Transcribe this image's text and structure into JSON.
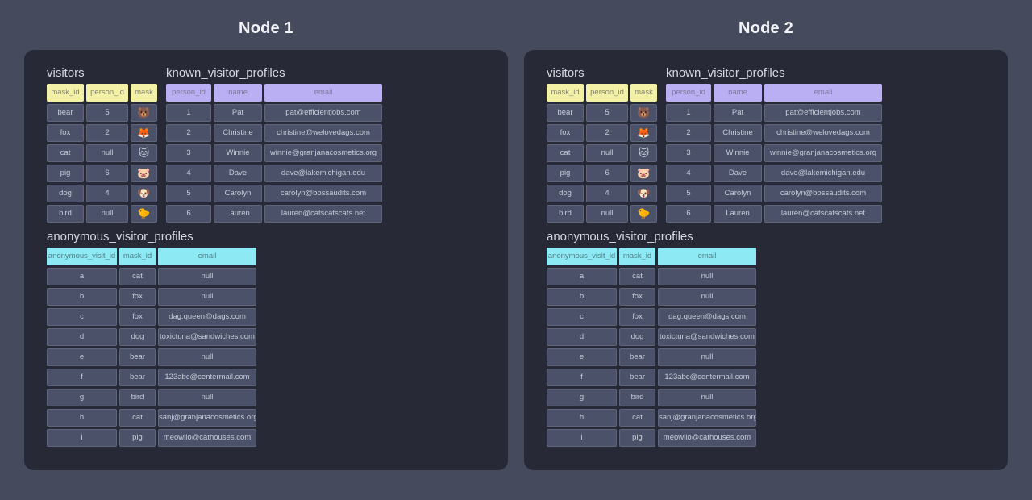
{
  "page": {
    "background": "#454a5c",
    "panel_background": "#272a36"
  },
  "colors": {
    "cell_bg": "#4a5168",
    "cell_border": "#5f667c",
    "cell_text": "#c7ccd8",
    "yellow_header_bg": "#f3f1a5",
    "yellow_header_text": "#85836f",
    "purple_header_bg": "#b9aff2",
    "purple_header_text": "#7e7a9e",
    "cyan_header_bg": "#8de9f3",
    "cyan_header_text": "#4e7e86"
  },
  "nodes": [
    {
      "title": "Node 1",
      "tables": [
        {
          "name": "visitors",
          "theme": "yellow",
          "columns": [
            "mask_id",
            "person_id",
            "mask"
          ],
          "mask_icons": [
            "bear-face-emoji",
            "fox-face-emoji",
            "cat-face-emoji",
            "pig-face-emoji",
            "dog-face-emoji",
            "baby-chick-emoji"
          ],
          "rows": [
            [
              "bear",
              "5",
              "🐻"
            ],
            [
              "fox",
              "2",
              "🦊"
            ],
            [
              "cat",
              "null",
              "🐱"
            ],
            [
              "pig",
              "6",
              "🐷"
            ],
            [
              "dog",
              "4",
              "🐶"
            ],
            [
              "bird",
              "null",
              "🐤"
            ]
          ]
        },
        {
          "name": "known_visitor_profiles",
          "theme": "purple",
          "columns": [
            "person_id",
            "name",
            "email"
          ],
          "rows": [
            [
              "1",
              "Pat",
              "pat@efficientjobs.com"
            ],
            [
              "2",
              "Christine",
              "christine@welovedags.com"
            ],
            [
              "3",
              "Winnie",
              "winnie@granjanacosmetics.org"
            ],
            [
              "4",
              "Dave",
              "dave@lakemichigan.edu"
            ],
            [
              "5",
              "Carolyn",
              "carolyn@bossaudits.com"
            ],
            [
              "6",
              "Lauren",
              "lauren@catscatscats.net"
            ]
          ]
        },
        {
          "name": "anonymous_visitor_profiles",
          "theme": "cyan",
          "columns": [
            "anonymous_visit_id",
            "mask_id",
            "email"
          ],
          "rows": [
            [
              "a",
              "cat",
              "null"
            ],
            [
              "b",
              "fox",
              "null"
            ],
            [
              "c",
              "fox",
              "dag.queen@dags.com"
            ],
            [
              "d",
              "dog",
              "toxictuna@sandwiches.com"
            ],
            [
              "e",
              "bear",
              "null"
            ],
            [
              "f",
              "bear",
              "123abc@centermail.com"
            ],
            [
              "g",
              "bird",
              "null"
            ],
            [
              "h",
              "cat",
              "sanj@granjanacosmetics.org"
            ],
            [
              "i",
              "pig",
              "meowllo@cathouses.com"
            ]
          ]
        }
      ]
    },
    {
      "title": "Node 2",
      "tables": [
        {
          "name": "visitors",
          "theme": "yellow",
          "columns": [
            "mask_id",
            "person_id",
            "mask"
          ],
          "mask_icons": [
            "bear-face-emoji",
            "fox-face-emoji",
            "cat-face-emoji",
            "pig-face-emoji",
            "dog-face-emoji",
            "baby-chick-emoji"
          ],
          "rows": [
            [
              "bear",
              "5",
              "🐻"
            ],
            [
              "fox",
              "2",
              "🦊"
            ],
            [
              "cat",
              "null",
              "🐱"
            ],
            [
              "pig",
              "6",
              "🐷"
            ],
            [
              "dog",
              "4",
              "🐶"
            ],
            [
              "bird",
              "null",
              "🐤"
            ]
          ]
        },
        {
          "name": "known_visitor_profiles",
          "theme": "purple",
          "columns": [
            "person_id",
            "name",
            "email"
          ],
          "rows": [
            [
              "1",
              "Pat",
              "pat@efficientjobs.com"
            ],
            [
              "2",
              "Christine",
              "christine@welovedags.com"
            ],
            [
              "3",
              "Winnie",
              "winnie@granjanacosmetics.org"
            ],
            [
              "4",
              "Dave",
              "dave@lakemichigan.edu"
            ],
            [
              "5",
              "Carolyn",
              "carolyn@bossaudits.com"
            ],
            [
              "6",
              "Lauren",
              "lauren@catscatscats.net"
            ]
          ]
        },
        {
          "name": "anonymous_visitor_profiles",
          "theme": "cyan",
          "columns": [
            "anonymous_visit_id",
            "mask_id",
            "email"
          ],
          "rows": [
            [
              "a",
              "cat",
              "null"
            ],
            [
              "b",
              "fox",
              "null"
            ],
            [
              "c",
              "fox",
              "dag.queen@dags.com"
            ],
            [
              "d",
              "dog",
              "toxictuna@sandwiches.com"
            ],
            [
              "e",
              "bear",
              "null"
            ],
            [
              "f",
              "bear",
              "123abc@centermail.com"
            ],
            [
              "g",
              "bird",
              "null"
            ],
            [
              "h",
              "cat",
              "sanj@granjanacosmetics.org"
            ],
            [
              "i",
              "pig",
              "meowllo@cathouses.com"
            ]
          ]
        }
      ]
    }
  ]
}
